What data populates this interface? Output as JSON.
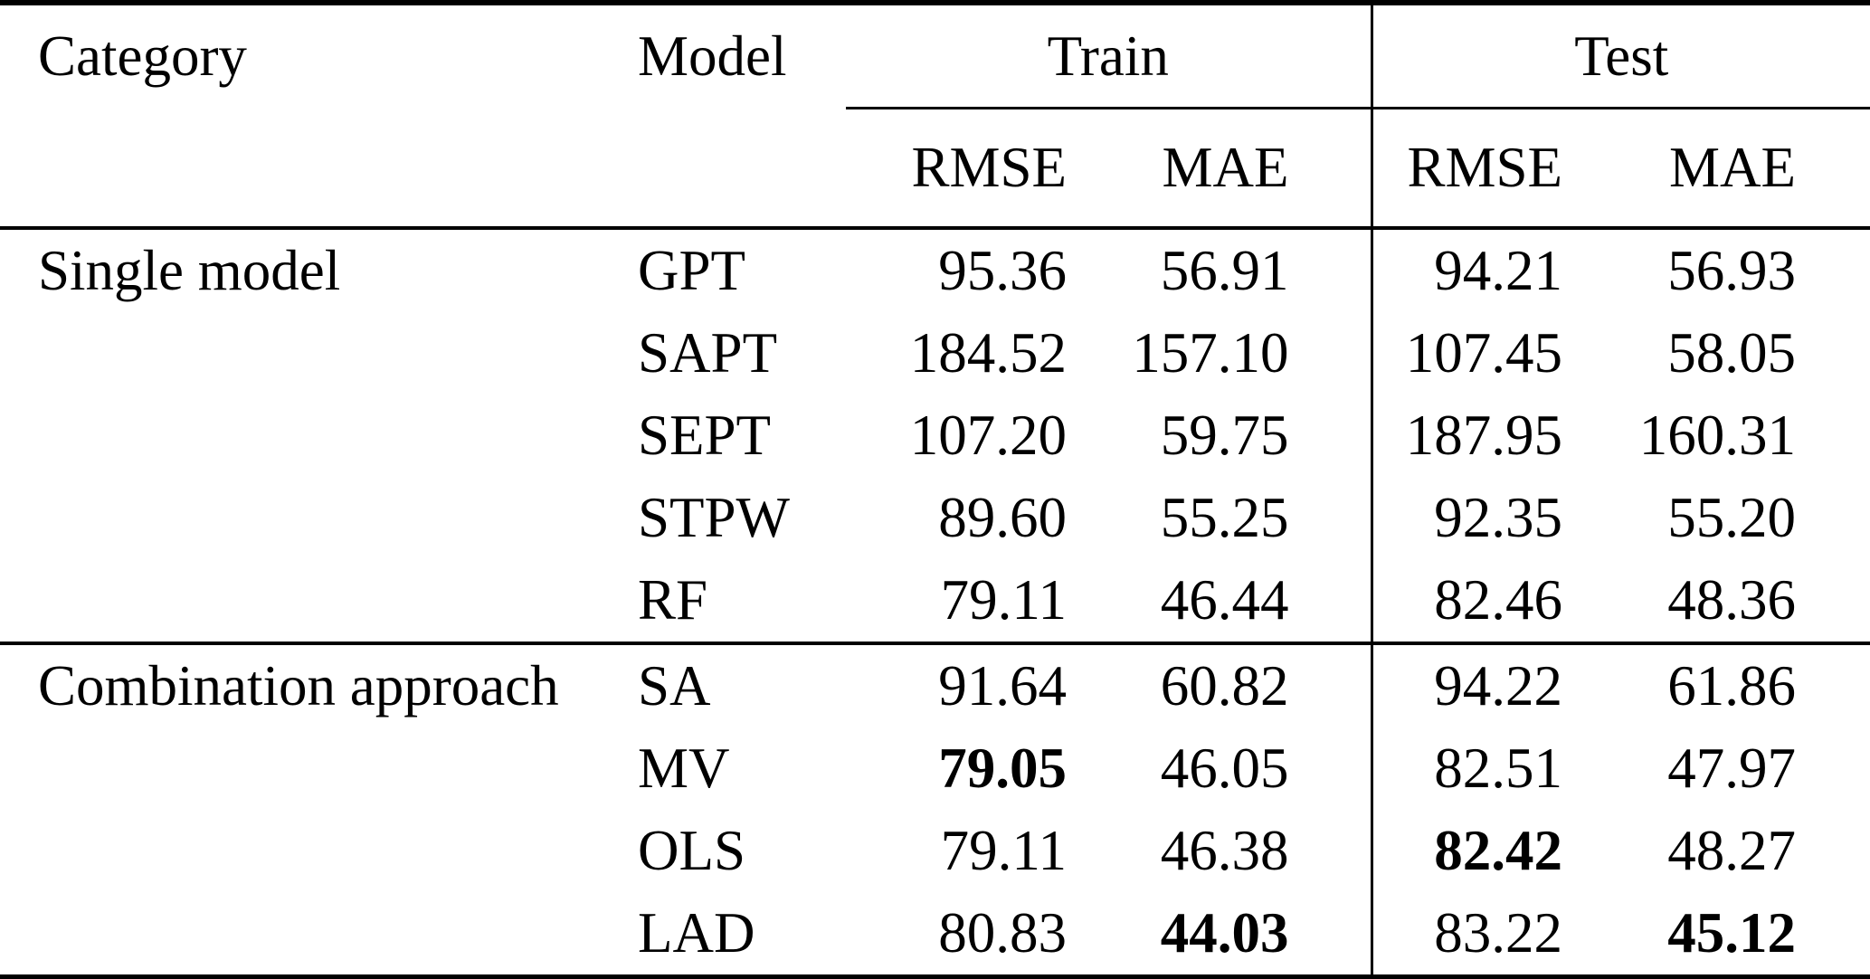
{
  "header": {
    "category": "Category",
    "model": "Model",
    "train": "Train",
    "test": "Test",
    "train_rmse": "RMSE",
    "train_mae": "MAE",
    "test_rmse": "RMSE",
    "test_mae": "MAE"
  },
  "chart_data": {
    "type": "table",
    "columns": [
      "Category",
      "Model",
      "Train RMSE",
      "Train MAE",
      "Test RMSE",
      "Test MAE"
    ],
    "sections": [
      {
        "category": "Single model",
        "rows": [
          {
            "model": "GPT",
            "train_rmse": "95.36",
            "train_mae": "56.91",
            "test_rmse": "94.21",
            "test_mae": "56.93",
            "bold": []
          },
          {
            "model": "SAPT",
            "train_rmse": "184.52",
            "train_mae": "157.10",
            "test_rmse": "107.45",
            "test_mae": "58.05",
            "bold": []
          },
          {
            "model": "SEPT",
            "train_rmse": "107.20",
            "train_mae": "59.75",
            "test_rmse": "187.95",
            "test_mae": "160.31",
            "bold": []
          },
          {
            "model": "STPW",
            "train_rmse": "89.60",
            "train_mae": "55.25",
            "test_rmse": "92.35",
            "test_mae": "55.20",
            "bold": []
          },
          {
            "model": "RF",
            "train_rmse": "79.11",
            "train_mae": "46.44",
            "test_rmse": "82.46",
            "test_mae": "48.36",
            "bold": []
          }
        ]
      },
      {
        "category": "Combination approach",
        "rows": [
          {
            "model": "SA",
            "train_rmse": "91.64",
            "train_mae": "60.82",
            "test_rmse": "94.22",
            "test_mae": "61.86",
            "bold": []
          },
          {
            "model": "MV",
            "train_rmse": "79.05",
            "train_mae": "46.05",
            "test_rmse": "82.51",
            "test_mae": "47.97",
            "bold": [
              "train_rmse"
            ]
          },
          {
            "model": "OLS",
            "train_rmse": "79.11",
            "train_mae": "46.38",
            "test_rmse": "82.42",
            "test_mae": "48.27",
            "bold": [
              "test_rmse"
            ]
          },
          {
            "model": "LAD",
            "train_rmse": "80.83",
            "train_mae": "44.03",
            "test_rmse": "83.22",
            "test_mae": "45.12",
            "bold": [
              "train_mae",
              "test_mae"
            ]
          }
        ]
      }
    ]
  }
}
